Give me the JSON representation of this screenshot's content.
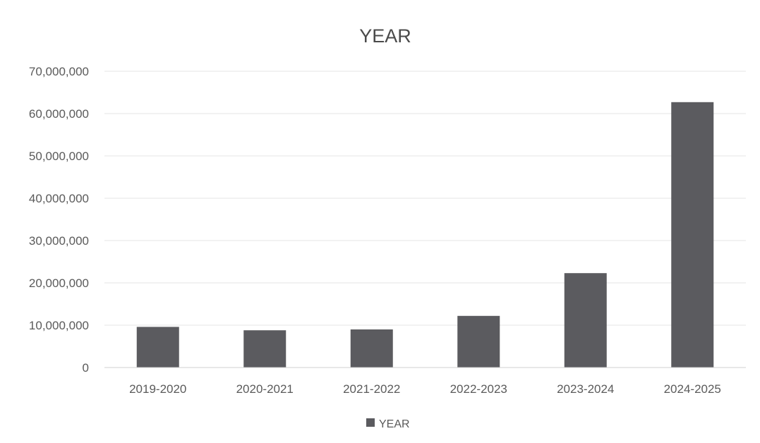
{
  "chart_data": {
    "type": "bar",
    "title": "YEAR",
    "xlabel": "",
    "ylabel": "",
    "categories": [
      "2019-2020",
      "2020-2021",
      "2021-2022",
      "2022-2023",
      "2023-2024",
      "2024-2025"
    ],
    "series": [
      {
        "name": "YEAR",
        "values": [
          9600000,
          8800000,
          9000000,
          12200000,
          22300000,
          62700000
        ],
        "color": "#5b5b5f"
      }
    ],
    "ylim": [
      0,
      70000000
    ],
    "yticks": [
      0,
      10000000,
      20000000,
      30000000,
      40000000,
      50000000,
      60000000,
      70000000
    ],
    "ytick_labels": [
      "0",
      "10,000,000",
      "20,000,000",
      "30,000,000",
      "40,000,000",
      "50,000,000",
      "60,000,000",
      "70,000,000"
    ],
    "grid": true,
    "legend": {
      "position": "bottom",
      "entries": [
        "YEAR"
      ]
    }
  }
}
